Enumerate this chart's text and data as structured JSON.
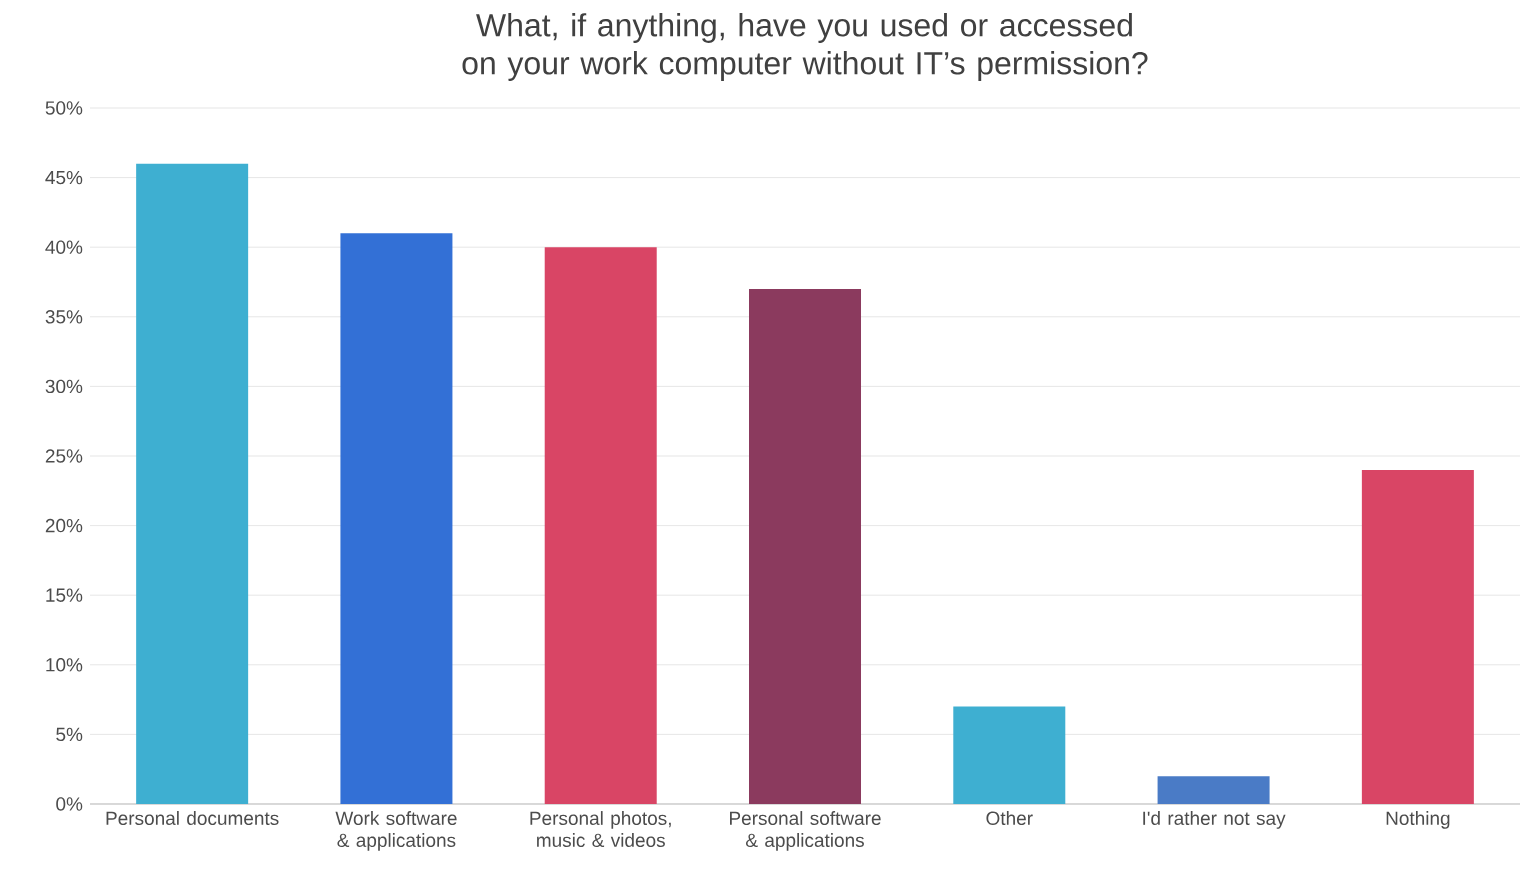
{
  "chart_data": {
    "type": "bar",
    "title": "What, if anything, have you used or accessed on your work computer without IT’s permission?",
    "categories": [
      "Personal documents",
      "Work software & applications",
      "Personal photos, music & videos",
      "Personal software & applications",
      "Other",
      "I'd rather not say",
      "Nothing"
    ],
    "values": [
      46,
      41,
      40,
      37,
      7,
      2,
      24
    ],
    "colors": [
      "#3eafd1",
      "#3370d6",
      "#d94565",
      "#8b3a5e",
      "#3eafd1",
      "#4a7bc6",
      "#d94565"
    ],
    "ylim": [
      0,
      50
    ],
    "yticks": [
      {
        "value": 0,
        "label": "0%"
      },
      {
        "value": 5,
        "label": "5%"
      },
      {
        "value": 10,
        "label": "10%"
      },
      {
        "value": 15,
        "label": "15%"
      },
      {
        "value": 20,
        "label": "20%"
      },
      {
        "value": 25,
        "label": "25%"
      },
      {
        "value": 30,
        "label": "30%"
      },
      {
        "value": 35,
        "label": "35%"
      },
      {
        "value": 40,
        "label": "40%"
      },
      {
        "value": 45,
        "label": "45%"
      },
      {
        "value": 50,
        "label": "50%"
      }
    ],
    "grid": "y"
  }
}
